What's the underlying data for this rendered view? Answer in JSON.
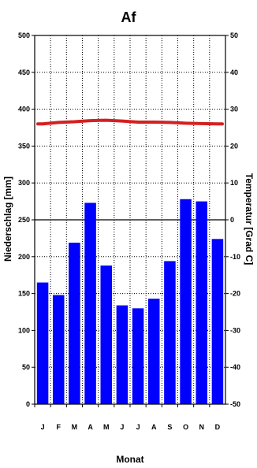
{
  "chart_data": {
    "type": "bar",
    "title": "Af",
    "xlabel": "Monat",
    "ylabel": "Niederschlag [mm]",
    "y2label": "Temperatur [Grad C]",
    "categories": [
      "J",
      "F",
      "M",
      "A",
      "M",
      "J",
      "J",
      "A",
      "S",
      "O",
      "N",
      "D"
    ],
    "series": [
      {
        "type": "bar",
        "axis": "left",
        "color": "#0000ff",
        "values": [
          165,
          148,
          219,
          273,
          188,
          134,
          130,
          143,
          194,
          278,
          275,
          224
        ]
      },
      {
        "type": "line",
        "axis": "right",
        "color": "#d42020",
        "values": [
          26.0,
          26.4,
          26.6,
          26.9,
          27.0,
          26.8,
          26.5,
          26.5,
          26.4,
          26.2,
          26.1,
          26.0
        ]
      }
    ],
    "ylim": [
      0,
      500
    ],
    "y2lim": [
      -50,
      50
    ],
    "yticks": [
      "0",
      "50",
      "100",
      "150",
      "200",
      "250",
      "300",
      "350",
      "400",
      "450",
      "500"
    ],
    "y2ticks": [
      "-50",
      "-40",
      "-30",
      "-20",
      "-10",
      "0",
      "10",
      "20",
      "30",
      "40",
      "50"
    ],
    "grid": true
  }
}
